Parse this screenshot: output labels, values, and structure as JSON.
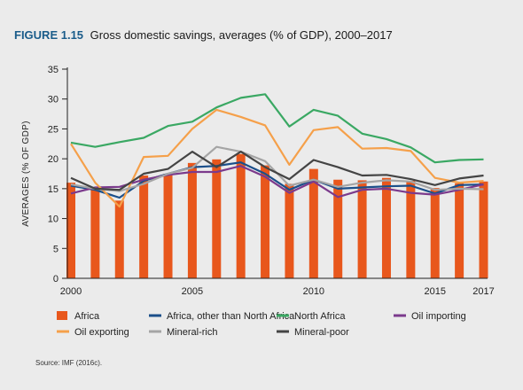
{
  "figure": {
    "label": "FIGURE 1.15",
    "title": "Gross domestic savings, averages (% of GDP), 2000–2017",
    "source": "Source: IMF (2016c)."
  },
  "colors": {
    "Africa": "#e8571c",
    "Africa, other than North Africa": "#1b4f8a",
    "North Africa": "#3aa863",
    "Oil importing": "#7b3a8c",
    "Oil exporting": "#f5a04a",
    "Mineral-rich": "#a5a5a5",
    "Mineral-poor": "#444444"
  },
  "chart_data": {
    "type": "bar",
    "title": "Gross domestic savings, averages (% of GDP), 2000–2017",
    "ylabel": "AVERAGES (% OF GDP)",
    "xlabel": "",
    "ylim": [
      0,
      35
    ],
    "yticks": [
      0,
      5,
      10,
      15,
      20,
      25,
      30,
      35
    ],
    "categories": [
      2000,
      2001,
      2002,
      2003,
      2004,
      2005,
      2006,
      2007,
      2008,
      2009,
      2010,
      2011,
      2012,
      2013,
      2014,
      2015,
      2016,
      2017
    ],
    "xtick_labels": [
      {
        "year": 2000,
        "label": "2000"
      },
      {
        "year": 2005,
        "label": "2005"
      },
      {
        "year": 2010,
        "label": "2010"
      },
      {
        "year": 2015,
        "label": "2015"
      },
      {
        "year": 2017,
        "label": "2017"
      }
    ],
    "grid": false,
    "legend_position": "bottom",
    "series": [
      {
        "name": "Africa",
        "kind": "bar",
        "values": [
          16.0,
          15.2,
          13.0,
          17.2,
          17.5,
          19.3,
          19.9,
          20.8,
          18.9,
          15.8,
          18.3,
          16.5,
          16.4,
          16.8,
          16.3,
          15.1,
          15.9,
          16.2
        ]
      },
      {
        "name": "Africa, other than North Africa",
        "kind": "line",
        "values": [
          15.5,
          14.8,
          13.5,
          16.3,
          17.5,
          18.6,
          18.8,
          19.4,
          17.5,
          14.8,
          16.5,
          15.0,
          15.2,
          15.4,
          15.5,
          14.2,
          15.6,
          15.7
        ]
      },
      {
        "name": "North Africa",
        "kind": "line",
        "values": [
          22.7,
          22.0,
          22.8,
          23.5,
          25.5,
          26.2,
          28.6,
          30.2,
          30.8,
          25.4,
          28.2,
          27.2,
          24.2,
          23.3,
          21.9,
          19.4,
          19.8,
          19.9
        ]
      },
      {
        "name": "Oil importing",
        "kind": "line",
        "values": [
          14.2,
          15.2,
          15.3,
          16.5,
          17.3,
          17.8,
          17.8,
          18.8,
          17.0,
          14.3,
          16.2,
          13.6,
          14.8,
          15.0,
          14.3,
          14.0,
          14.8,
          15.7
        ]
      },
      {
        "name": "Oil exporting",
        "kind": "line",
        "values": [
          22.5,
          16.0,
          12.0,
          20.3,
          20.5,
          25.0,
          28.2,
          27.0,
          25.6,
          19.0,
          24.8,
          25.3,
          21.7,
          21.8,
          21.3,
          16.8,
          16.0,
          16.3
        ]
      },
      {
        "name": "Mineral-rich",
        "kind": "line",
        "values": [
          15.7,
          15.0,
          14.6,
          15.8,
          17.5,
          18.5,
          22.0,
          21.2,
          19.6,
          15.5,
          16.5,
          15.3,
          16.0,
          16.4,
          16.2,
          14.8,
          15.0,
          14.9
        ]
      },
      {
        "name": "Mineral-poor",
        "kind": "line",
        "values": [
          16.8,
          15.0,
          14.8,
          17.5,
          18.3,
          21.2,
          18.6,
          21.2,
          18.6,
          16.6,
          19.8,
          18.6,
          17.2,
          17.3,
          16.6,
          15.6,
          16.7,
          17.2
        ]
      }
    ]
  }
}
